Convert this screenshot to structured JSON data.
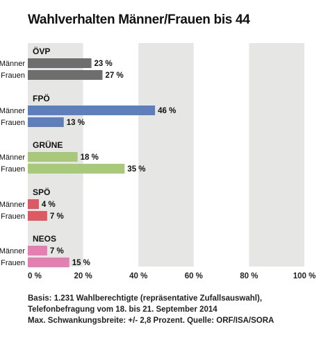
{
  "title": "Wahlverhalten Männer/Frauen bis 44",
  "chart_data": {
    "type": "bar",
    "orientation": "horizontal",
    "title": "Wahlverhalten Männer/Frauen bis 44",
    "xlim": [
      0,
      100
    ],
    "x_ticks": [
      "0 %",
      "20 %",
      "40 %",
      "60 %",
      "80 %",
      "100 %"
    ],
    "groups": [
      {
        "name": "ÖVP",
        "color": "#6e6e6e",
        "bars": [
          {
            "label": "Männer",
            "value": 23,
            "value_label": "23 %"
          },
          {
            "label": "Frauen",
            "value": 27,
            "value_label": "27 %"
          }
        ]
      },
      {
        "name": "FPÖ",
        "color": "#5e7fbc",
        "bars": [
          {
            "label": "Männer",
            "value": 46,
            "value_label": "46 %"
          },
          {
            "label": "Frauen",
            "value": 13,
            "value_label": "13 %"
          }
        ]
      },
      {
        "name": "GRÜNE",
        "color": "#a8c87a",
        "bars": [
          {
            "label": "Männer",
            "value": 18,
            "value_label": "18 %"
          },
          {
            "label": "Frauen",
            "value": 35,
            "value_label": "35 %"
          }
        ]
      },
      {
        "name": "SPÖ",
        "color": "#dc5a64",
        "bars": [
          {
            "label": "Männer",
            "value": 4,
            "value_label": "4 %"
          },
          {
            "label": "Frauen",
            "value": 7,
            "value_label": "7 %"
          }
        ]
      },
      {
        "name": "NEOS",
        "color": "#e47fb2",
        "bars": [
          {
            "label": "Männer",
            "value": 7,
            "value_label": "7 %"
          },
          {
            "label": "Frauen",
            "value": 15,
            "value_label": "15 %"
          }
        ]
      }
    ],
    "band_color": "#e6e6e4"
  },
  "notes": [
    "Basis: 1.231 Wahlberechtigte (repräsentative Zufallsauswahl),",
    "Telefonbefragung vom 18. bis 21. September 2014",
    "Max. Schwankungsbreite: +/- 2,8 Prozent. Quelle: ORF/ISA/SORA"
  ]
}
